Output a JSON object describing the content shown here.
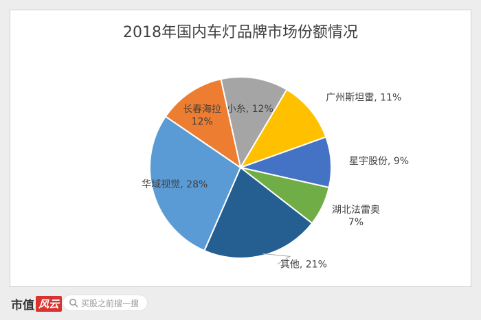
{
  "chart_data": {
    "type": "pie",
    "title": "2018年国内车灯品牌市场份额情况",
    "slices": [
      {
        "name": "小糸",
        "value": 12,
        "label": "小糸, 12%",
        "color": "#a5a5a5"
      },
      {
        "name": "广州斯坦雷",
        "value": 11,
        "label": "广州斯坦雷, 11%",
        "color": "#ffc000"
      },
      {
        "name": "星宇股份",
        "value": 9,
        "label": "星宇股份, 9%",
        "color": "#4472c4"
      },
      {
        "name": "湖北法雷奥",
        "value": 7,
        "label": [
          "湖北法雷奥",
          "7%"
        ],
        "color": "#70ad47"
      },
      {
        "name": "其他",
        "value": 21,
        "label": "其他, 21%",
        "color": "#255e91"
      },
      {
        "name": "华域视觉",
        "value": 28,
        "label": "华域视觉, 28%",
        "color": "#5b9bd5"
      },
      {
        "name": "长春海拉",
        "value": 12,
        "label": [
          "长春海拉",
          "12%"
        ],
        "color": "#ed7d31"
      }
    ],
    "legend": "none",
    "data_labels": true
  },
  "footer": {
    "logo_text": "市值",
    "logo_mark": "风云",
    "search_placeholder": "买股之前搜一搜"
  }
}
